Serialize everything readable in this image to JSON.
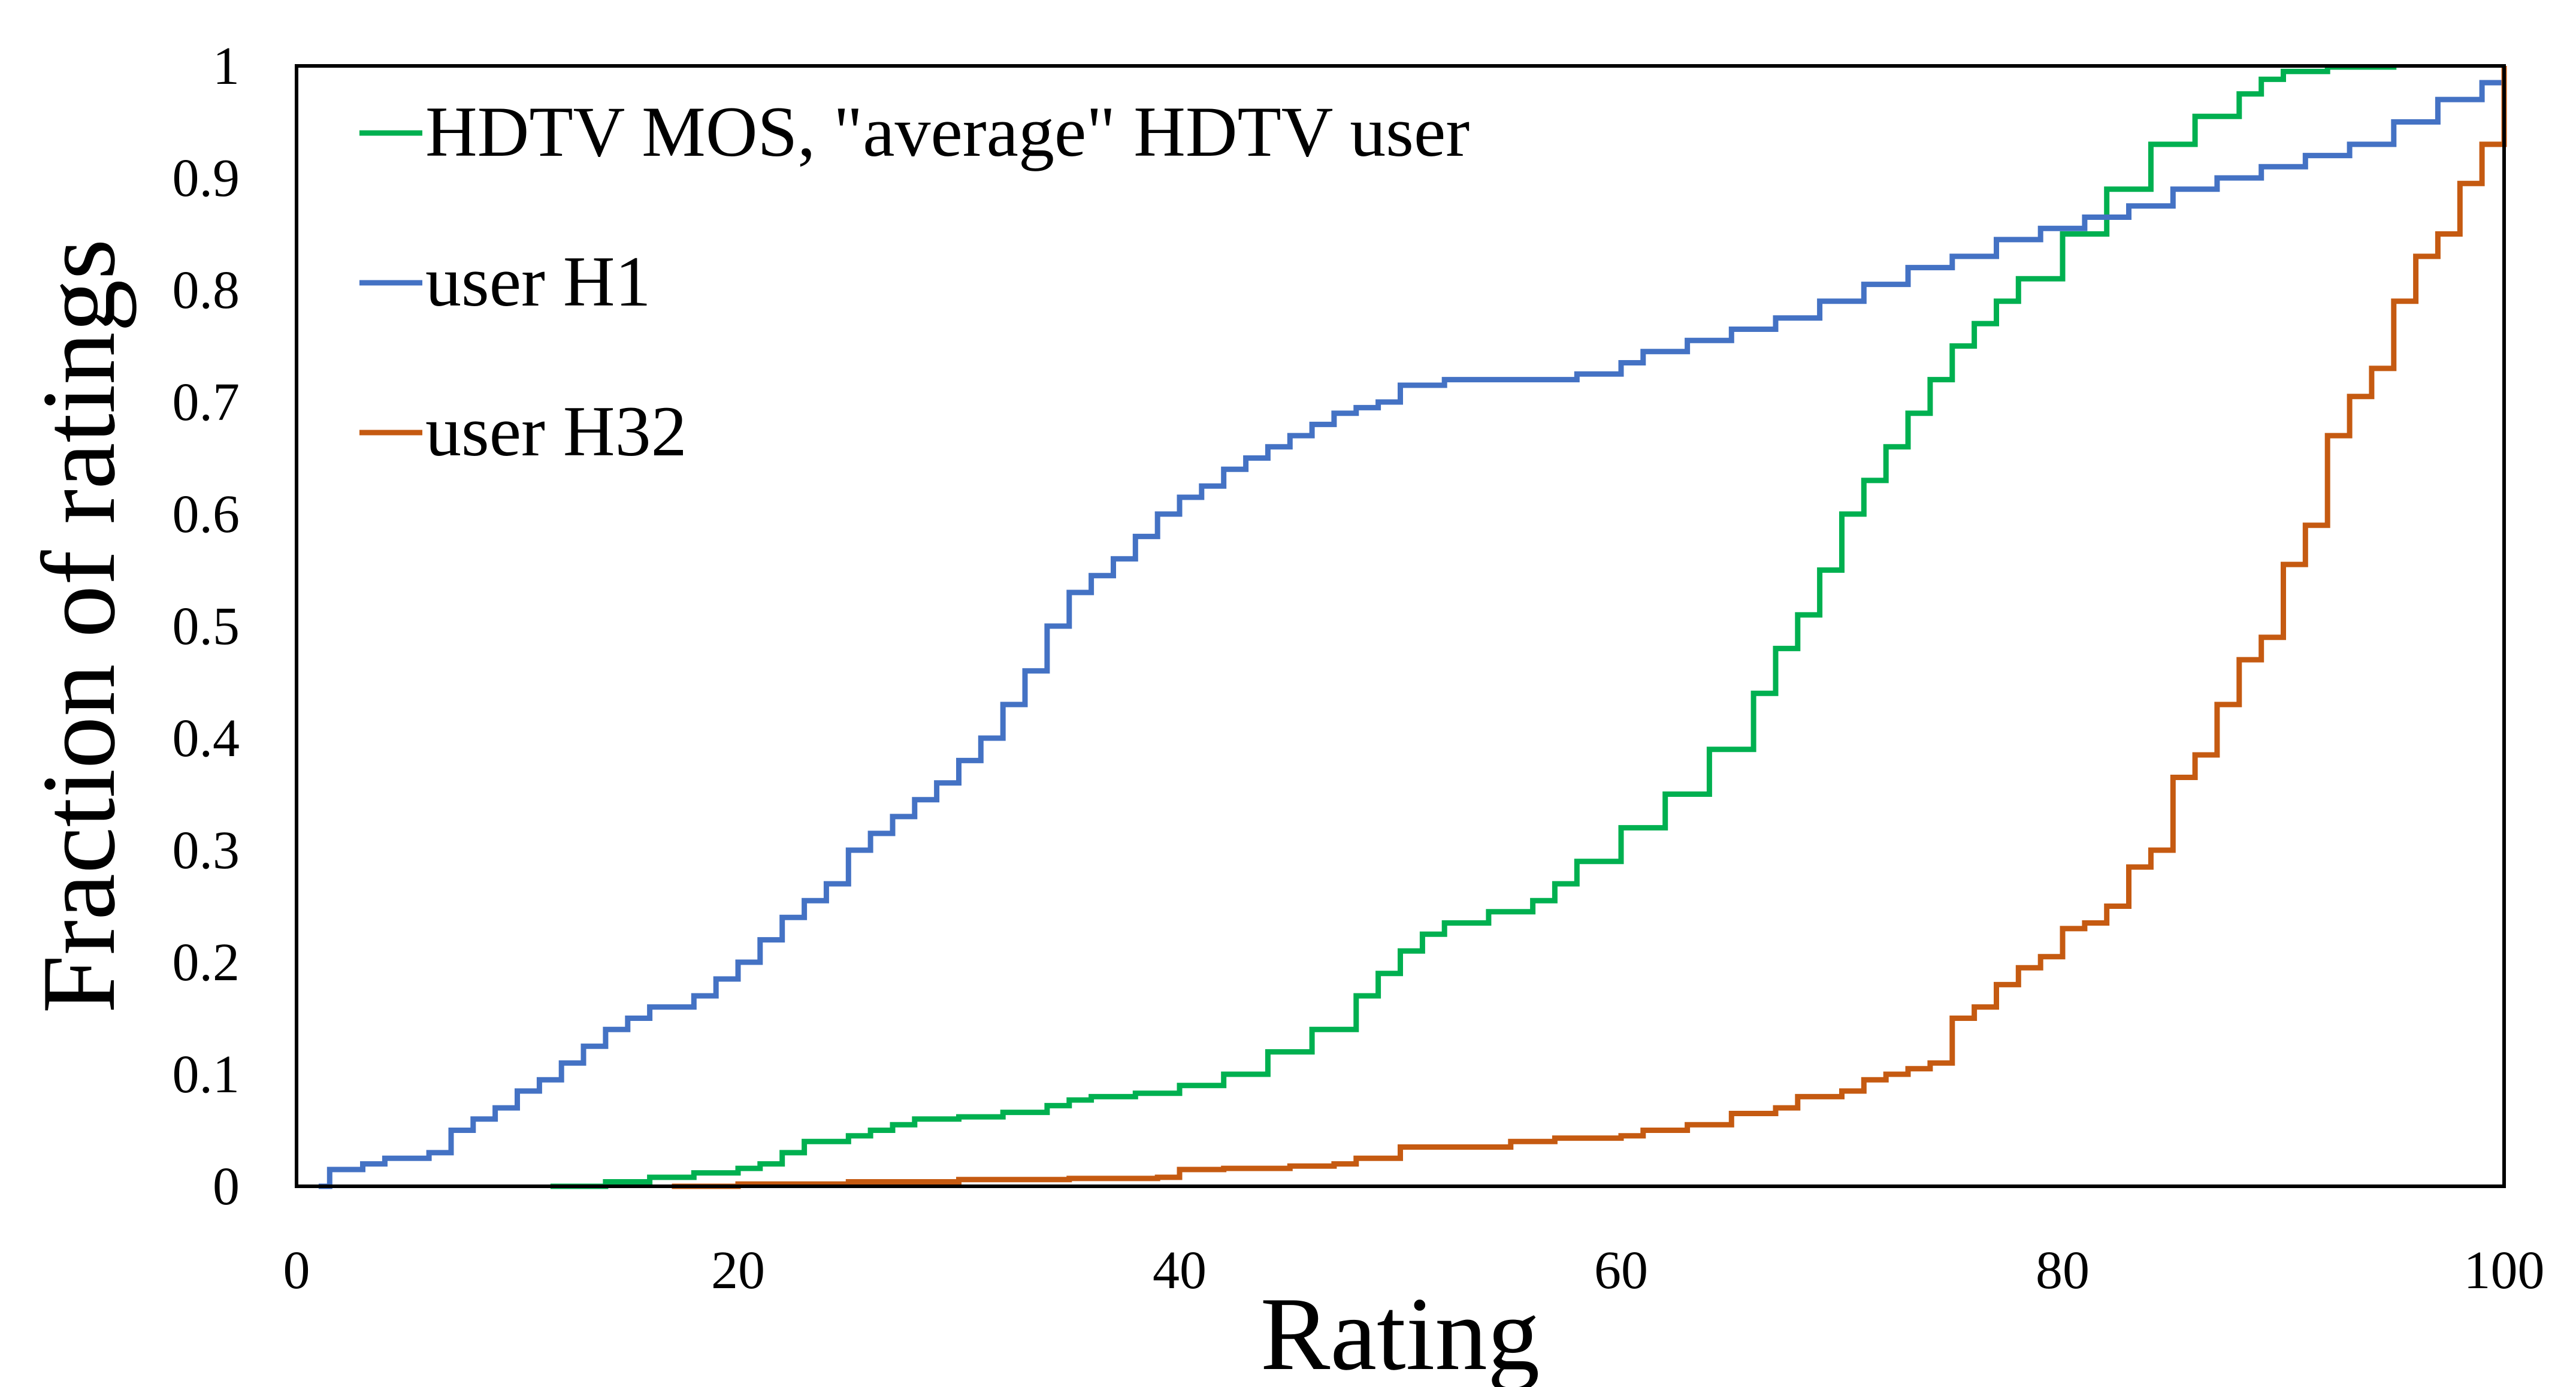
{
  "chart_data": {
    "type": "line",
    "title": "",
    "xlabel": "Rating",
    "ylabel": "Fraction of ratings",
    "xlim": [
      0,
      100
    ],
    "ylim": [
      0,
      1
    ],
    "xticks": [
      "0",
      "20",
      "40",
      "60",
      "80",
      "100"
    ],
    "yticks": [
      "0",
      "0.1",
      "0.2",
      "0.3",
      "0.4",
      "0.5",
      "0.6",
      "0.7",
      "0.8",
      "0.9",
      "1"
    ],
    "grid": false,
    "legend_position": "top-left",
    "series": [
      {
        "name": "HDTV MOS, \"average\" HDTV user",
        "color": "#00B050",
        "x": [
          11.5,
          14,
          16,
          18,
          20,
          21,
          22,
          23,
          25,
          26,
          27,
          28,
          30,
          32,
          34,
          35,
          36,
          38,
          40,
          42,
          44,
          46,
          48,
          49,
          50,
          51,
          52,
          54,
          56,
          57,
          58,
          60,
          62,
          64,
          66,
          67,
          68,
          69,
          70,
          71,
          72,
          73,
          74,
          75,
          76,
          77,
          78,
          80,
          82,
          84,
          86,
          88,
          89,
          90,
          92,
          95
        ],
        "y": [
          0,
          0.004,
          0.008,
          0.012,
          0.016,
          0.02,
          0.03,
          0.04,
          0.045,
          0.05,
          0.055,
          0.06,
          0.062,
          0.066,
          0.072,
          0.077,
          0.08,
          0.083,
          0.09,
          0.1,
          0.12,
          0.14,
          0.17,
          0.19,
          0.21,
          0.225,
          0.235,
          0.245,
          0.255,
          0.27,
          0.29,
          0.32,
          0.35,
          0.39,
          0.44,
          0.48,
          0.51,
          0.55,
          0.6,
          0.63,
          0.66,
          0.69,
          0.72,
          0.75,
          0.77,
          0.79,
          0.81,
          0.85,
          0.89,
          0.93,
          0.955,
          0.975,
          0.988,
          0.995,
          0.999,
          1.0
        ]
      },
      {
        "name": "user H1",
        "color": "#4472C4",
        "x": [
          1,
          1.5,
          3,
          4,
          6,
          7,
          8,
          9,
          10,
          11,
          12,
          13,
          14,
          15,
          16,
          18,
          19,
          20,
          21,
          22,
          23,
          24,
          25,
          26,
          27,
          28,
          29,
          30,
          31,
          32,
          33,
          34,
          35,
          36,
          37,
          38,
          39,
          40,
          41,
          42,
          43,
          44,
          45,
          46,
          47,
          48,
          49,
          50,
          52,
          55,
          58,
          60,
          61,
          63,
          65,
          67,
          69,
          71,
          73,
          75,
          77,
          79,
          81,
          83,
          85,
          87,
          89,
          91,
          93,
          95,
          97,
          99,
          100
        ],
        "y": [
          0,
          0.015,
          0.02,
          0.025,
          0.03,
          0.05,
          0.06,
          0.07,
          0.085,
          0.095,
          0.11,
          0.125,
          0.14,
          0.15,
          0.16,
          0.17,
          0.185,
          0.2,
          0.22,
          0.24,
          0.255,
          0.27,
          0.3,
          0.315,
          0.33,
          0.345,
          0.36,
          0.38,
          0.4,
          0.43,
          0.46,
          0.5,
          0.53,
          0.545,
          0.56,
          0.58,
          0.6,
          0.615,
          0.625,
          0.64,
          0.65,
          0.66,
          0.67,
          0.68,
          0.69,
          0.695,
          0.7,
          0.715,
          0.72,
          0.72,
          0.725,
          0.735,
          0.745,
          0.755,
          0.765,
          0.775,
          0.79,
          0.805,
          0.82,
          0.83,
          0.845,
          0.855,
          0.865,
          0.875,
          0.89,
          0.9,
          0.91,
          0.92,
          0.93,
          0.95,
          0.97,
          0.985,
          0.995
        ]
      },
      {
        "name": "user H32",
        "color": "#C55A11",
        "x": [
          17,
          20,
          25,
          30,
          35,
          39,
          40,
          42,
          45,
          47,
          48,
          50,
          55,
          57,
          60,
          61,
          63,
          65,
          67,
          68,
          70,
          71,
          72,
          73,
          74,
          75,
          76,
          77,
          78,
          79,
          80,
          81,
          82,
          83,
          84,
          85,
          86,
          87,
          88,
          89,
          90,
          91,
          92,
          93,
          94,
          95,
          96,
          97,
          98,
          99,
          100
        ],
        "y": [
          0,
          0.002,
          0.004,
          0.006,
          0.007,
          0.008,
          0.015,
          0.016,
          0.018,
          0.02,
          0.025,
          0.035,
          0.04,
          0.043,
          0.045,
          0.05,
          0.055,
          0.065,
          0.07,
          0.08,
          0.085,
          0.095,
          0.1,
          0.105,
          0.11,
          0.15,
          0.16,
          0.18,
          0.195,
          0.205,
          0.23,
          0.235,
          0.25,
          0.285,
          0.3,
          0.365,
          0.385,
          0.43,
          0.47,
          0.49,
          0.555,
          0.59,
          0.67,
          0.705,
          0.73,
          0.79,
          0.83,
          0.85,
          0.895,
          0.93,
          1.0
        ]
      }
    ]
  }
}
